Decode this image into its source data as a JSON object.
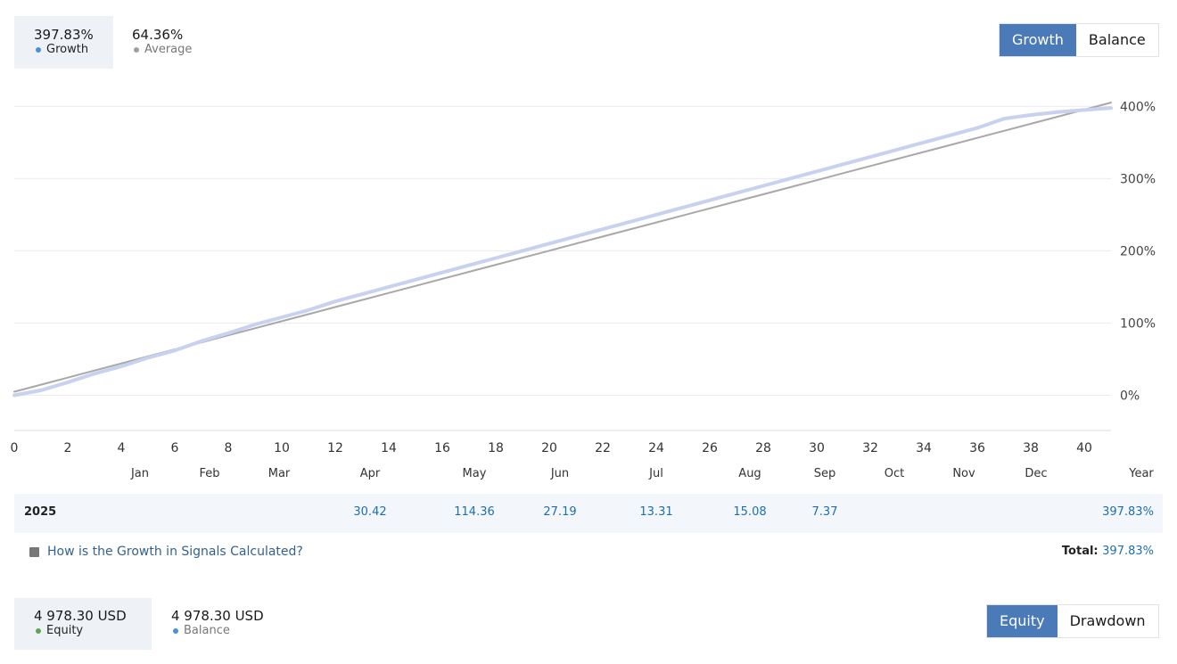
{
  "growth_summary": {
    "growth": {
      "value": "397.83%",
      "label": "Growth",
      "color": "#4a90d9"
    },
    "average": {
      "value": "64.36%",
      "label": "Average",
      "color": "#9e9e9e"
    }
  },
  "top_toggle": {
    "growth_label": "Growth",
    "balance_label": "Balance"
  },
  "chart_data": {
    "type": "line",
    "x": [
      0,
      1,
      2,
      3,
      4,
      5,
      6,
      7,
      8,
      9,
      10,
      11,
      12,
      13,
      14,
      15,
      16,
      17,
      18,
      19,
      20,
      21,
      22,
      23,
      24,
      25,
      26,
      27,
      28,
      29,
      30,
      31,
      32,
      33,
      34,
      35,
      36,
      37,
      38,
      39,
      40,
      41
    ],
    "series": [
      {
        "name": "Growth",
        "color": "#c8d2ee",
        "values": [
          0,
          7,
          18,
          30,
          40,
          52,
          62,
          75,
          86,
          98,
          108,
          118,
          130,
          140,
          150,
          160,
          170,
          180,
          190,
          200,
          210,
          220,
          230,
          240,
          250,
          260,
          270,
          280,
          290,
          300,
          310,
          320,
          330,
          340,
          350,
          360,
          370,
          383,
          388,
          392,
          395,
          397.83
        ]
      },
      {
        "name": "Average",
        "color": "#a8a8a8",
        "values": [
          5,
          14.76,
          24.52,
          34.28,
          44.04,
          53.8,
          63.56,
          73.32,
          83.08,
          92.84,
          102.6,
          112.36,
          122.12,
          131.88,
          141.64,
          151.4,
          161.16,
          170.92,
          180.68,
          190.44,
          200.2,
          209.96,
          219.72,
          229.48,
          239.24,
          249,
          258.76,
          268.52,
          278.28,
          288.04,
          297.8,
          307.56,
          317.32,
          327.08,
          336.84,
          346.6,
          356.36,
          366.12,
          375.88,
          385.64,
          395.4,
          405.16
        ]
      }
    ],
    "x_ticks": [
      "0",
      "2",
      "4",
      "6",
      "8",
      "10",
      "12",
      "14",
      "16",
      "18",
      "20",
      "22",
      "24",
      "26",
      "28",
      "30",
      "32",
      "34",
      "36",
      "38",
      "40"
    ],
    "y_ticks": [
      "0%",
      "100%",
      "200%",
      "300%",
      "400%"
    ],
    "xlim": [
      0,
      41
    ],
    "ylim": [
      -45,
      430
    ],
    "grid": "horizontal"
  },
  "months": {
    "labels": [
      {
        "name": "Jan",
        "x": 4.7
      },
      {
        "name": "Feb",
        "x": 7.3
      },
      {
        "name": "Mar",
        "x": 9.9
      },
      {
        "name": "Apr",
        "x": 13.3
      },
      {
        "name": "May",
        "x": 17.2
      },
      {
        "name": "Jun",
        "x": 20.4
      },
      {
        "name": "Jul",
        "x": 24.0
      },
      {
        "name": "Aug",
        "x": 27.5
      },
      {
        "name": "Sep",
        "x": 30.3
      },
      {
        "name": "Oct",
        "x": 32.9
      },
      {
        "name": "Nov",
        "x": 35.5
      },
      {
        "name": "Dec",
        "x": 38.2
      }
    ],
    "year_label": "Year"
  },
  "year_row": {
    "year": "2025",
    "values": [
      {
        "month": "Apr",
        "value": "30.42"
      },
      {
        "month": "May",
        "value": "114.36"
      },
      {
        "month": "Jun",
        "value": "27.19"
      },
      {
        "month": "Jul",
        "value": "13.31"
      },
      {
        "month": "Aug",
        "value": "15.08"
      },
      {
        "month": "Sep",
        "value": "7.37"
      }
    ],
    "year_total": "397.83%"
  },
  "footer": {
    "info_link": "How is the Growth in Signals Calculated?",
    "total_label": "Total:",
    "total_value": "397.83%"
  },
  "equity_summary": {
    "equity": {
      "value": "4 978.30 USD",
      "label": "Equity",
      "color": "#5aa84a"
    },
    "balance": {
      "value": "4 978.30 USD",
      "label": "Balance",
      "color": "#4a90d9"
    }
  },
  "bottom_toggle": {
    "equity_label": "Equity",
    "drawdown_label": "Drawdown"
  }
}
